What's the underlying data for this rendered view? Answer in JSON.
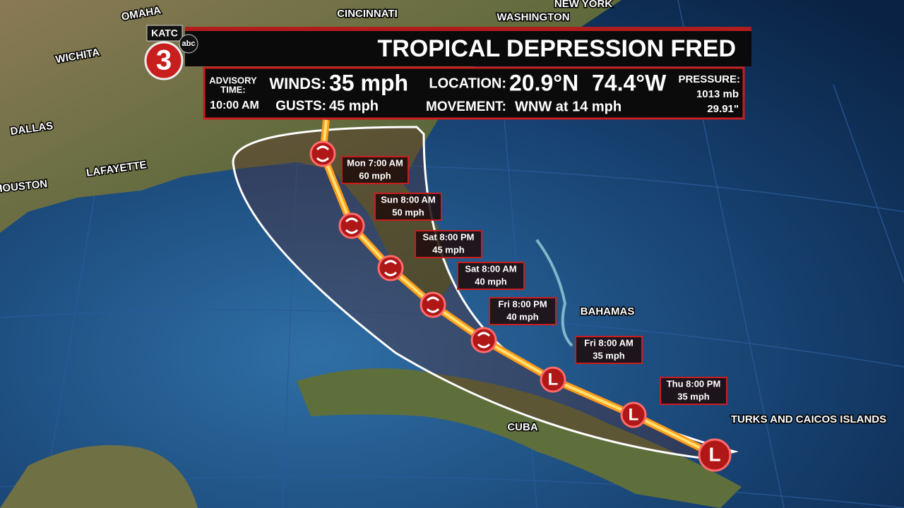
{
  "header": {
    "station": "KATC",
    "channel": "3",
    "network": "abc",
    "title": "TROPICAL DEPRESSION FRED"
  },
  "advisory": {
    "time_label": [
      "ADVISORY",
      "TIME:"
    ],
    "time": "10:00 AM",
    "winds_label": "WINDS:",
    "winds": "35 mph",
    "gusts_label": "GUSTS:",
    "gusts": "45 mph",
    "location_label": "LOCATION:",
    "latitude": "20.9°N",
    "longitude": "74.4°W",
    "movement_label": "MOVEMENT:",
    "movement": "WNW at 14 mph",
    "pressure_label": "PRESSURE:",
    "pressure_mb": "1013 mb",
    "pressure_in": "29.91\""
  },
  "places": [
    {
      "label": "OMAHA"
    },
    {
      "label": "CINCINNATI"
    },
    {
      "label": "WASHINGTON"
    },
    {
      "label": "NEW YORK"
    },
    {
      "label": "WICHITA"
    },
    {
      "label": "DALLAS"
    },
    {
      "label": "LAFAYETTE"
    },
    {
      "label": "HOUSTON"
    },
    {
      "label": "BAHAMAS"
    },
    {
      "label": "CUBA"
    },
    {
      "label": "TURKS AND CAICOS ISLANDS"
    }
  ],
  "current_position": {
    "symbol": "L"
  },
  "forecast_points": [
    {
      "time": "Thu 8:00 PM",
      "wind": "35 mph",
      "symbol": "L"
    },
    {
      "time": "Fri 8:00 AM",
      "wind": "35 mph",
      "symbol": "L"
    },
    {
      "time": "Fri 8:00 PM",
      "wind": "40 mph"
    },
    {
      "time": "Sat 8:00 AM",
      "wind": "40 mph"
    },
    {
      "time": "Sat 8:00 PM",
      "wind": "45 mph"
    },
    {
      "time": "Sun 8:00 AM",
      "wind": "50 mph"
    },
    {
      "time": "Mon 7:00 AM",
      "wind": "60 mph"
    }
  ]
}
